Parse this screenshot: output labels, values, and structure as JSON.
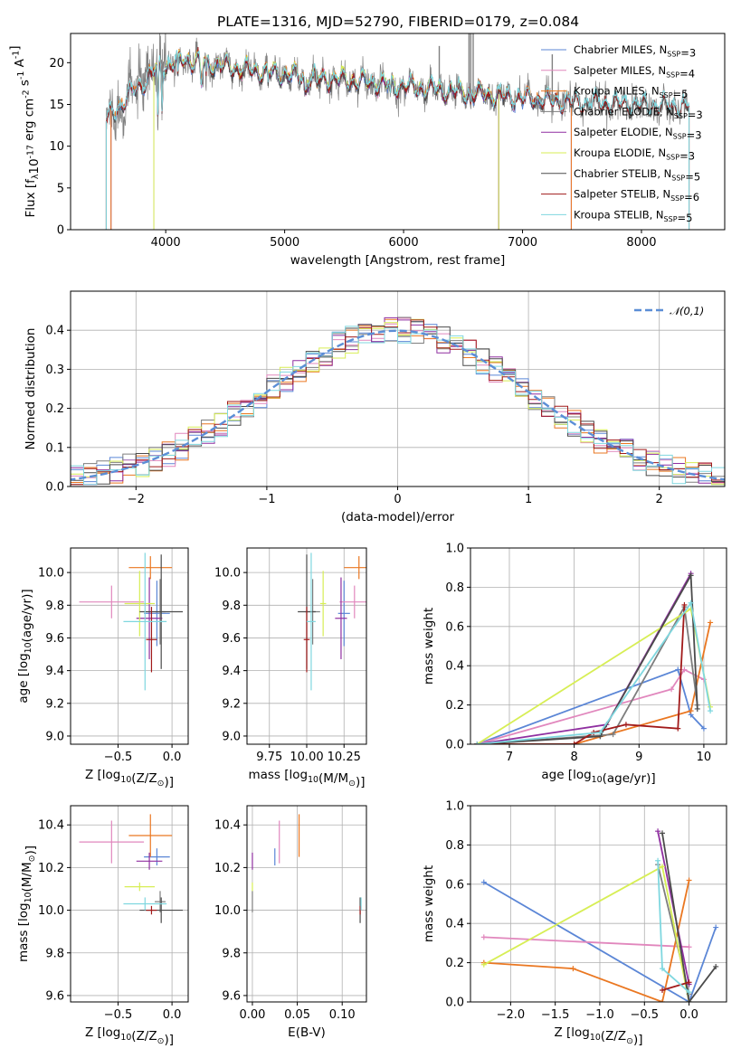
{
  "figure": {
    "title": "PLATE=1316, MJD=52790, FIBERID=0179, z=0.084"
  },
  "colors": {
    "Chabrier MILES": "#5b86d6",
    "Salpeter MILES": "#e187bd",
    "Kroupa MILES": "#ea7721",
    "Chabrier ELODIE": "#7e7e7e",
    "Salpeter ELODIE": "#8f2fa0",
    "Kroupa ELODIE": "#d7ee55",
    "Chabrier STELIB": "#4b4b4b",
    "Salpeter STELIB": "#a11a1a",
    "Kroupa STELIB": "#7fd7df",
    "data": "#808080",
    "normal": "#5b8ed6"
  },
  "chart_data": [
    {
      "id": "spectrum",
      "type": "line",
      "title": "PLATE=1316, MJD=52790, FIBERID=0179, z=0.084",
      "xlabel": "wavelength [Angstrom, rest frame]",
      "ylabel": "Flux [f$_\\lambda$10$^{-17}$ erg cm$^{-2}$ s$^{-1}$ A$^{-1}$]",
      "xlim": [
        3200,
        8700
      ],
      "ylim": [
        0,
        23.5
      ],
      "xticks": [
        4000,
        5000,
        6000,
        7000,
        8000
      ],
      "yticks": [
        0,
        5,
        10,
        15,
        20
      ],
      "grid": false,
      "legend_position": "top-right",
      "continuum": {
        "x": [
          3500,
          3600,
          3700,
          3800,
          3900,
          4000,
          4100,
          4200,
          4300,
          4400,
          4600,
          4800,
          5000,
          5200,
          5400,
          5600,
          5800,
          6000,
          6200,
          6400,
          6600,
          6800,
          7000,
          7200,
          7400,
          7600,
          7800,
          8000,
          8200,
          8400,
          8700
        ],
        "y": [
          13.2,
          14.5,
          16.3,
          17.5,
          19.0,
          19.6,
          20.2,
          20.3,
          20.0,
          19.8,
          19.3,
          18.9,
          18.6,
          18.3,
          18.0,
          17.8,
          17.5,
          17.2,
          16.9,
          16.6,
          16.3,
          16.0,
          15.8,
          15.5,
          15.3,
          15.2,
          15.1,
          15.0,
          14.9,
          14.8,
          14.7
        ]
      },
      "series": [
        {
          "name": "Chabrier MILES, N$_{SSP}$=3"
        },
        {
          "name": "Salpeter MILES, N$_{SSP}$=4"
        },
        {
          "name": "Kroupa MILES, N$_{SSP}$=5"
        },
        {
          "name": "Chabrier ELODIE, N$_{SSP}$=3"
        },
        {
          "name": "Salpeter ELODIE, N$_{SSP}$=3"
        },
        {
          "name": "Kroupa ELODIE, N$_{SSP}$=3"
        },
        {
          "name": "Chabrier STELIB, N$_{SSP}$=5"
        },
        {
          "name": "Salpeter STELIB, N$_{SSP}$=6"
        },
        {
          "name": "Kroupa STELIB, N$_{SSP}$=5"
        }
      ]
    },
    {
      "id": "residuals",
      "type": "line",
      "xlabel": "(data-model)/error",
      "ylabel": "Normed distribution",
      "xlim": [
        -2.5,
        2.5
      ],
      "ylim": [
        0,
        0.5
      ],
      "xticks": [
        -2,
        -1,
        0,
        1,
        2
      ],
      "yticks": [
        0.0,
        0.1,
        0.2,
        0.3,
        0.4
      ],
      "grid": true,
      "legend_position": "top-right",
      "normal_label": "$\\mathcal{N}(0,1)$"
    },
    {
      "id": "age-vs-Z",
      "type": "scatter",
      "xlabel": "Z [log$_{10}$(Z/Z$_\\odot$)]",
      "ylabel": "age  [log$_{10}$(age/yr)]",
      "xlim": [
        -0.94,
        0.15
      ],
      "ylim": [
        8.95,
        10.15
      ],
      "xticks": [
        -0.5,
        0.0
      ],
      "yticks": [
        9.0,
        9.2,
        9.4,
        9.6,
        9.8,
        10.0
      ],
      "grid": true
    },
    {
      "id": "age-vs-mass",
      "type": "scatter",
      "xlabel": "mass [log$_{10}$(M/M$_\\odot$)]",
      "ylabel": "",
      "xlim": [
        9.6,
        10.4
      ],
      "ylim": [
        8.95,
        10.15
      ],
      "xticks": [
        9.75,
        10.0,
        10.25
      ],
      "yticks": [
        9.0,
        9.2,
        9.4,
        9.6,
        9.8,
        10.0
      ],
      "grid": true
    },
    {
      "id": "weight-vs-age",
      "type": "line",
      "xlabel": "age  [log$_{10}$(age/yr)]",
      "ylabel": "mass weight",
      "xlim": [
        6.4,
        10.35
      ],
      "ylim": [
        0,
        1.0
      ],
      "xticks": [
        7,
        8,
        9,
        10
      ],
      "yticks": [
        0.0,
        0.2,
        0.4,
        0.6,
        0.8,
        1.0
      ],
      "grid": true
    },
    {
      "id": "mass-vs-Z",
      "type": "scatter",
      "xlabel": "Z [log$_{10}$(Z/Z$_\\odot$)]",
      "ylabel": "mass [log$_{10}$(M/M$_\\odot$)]",
      "xlim": [
        -0.94,
        0.15
      ],
      "ylim": [
        9.57,
        10.49
      ],
      "xticks": [
        -0.5,
        0.0
      ],
      "yticks": [
        9.6,
        9.8,
        10.0,
        10.2,
        10.4
      ],
      "grid": true
    },
    {
      "id": "mass-vs-ebv",
      "type": "scatter",
      "xlabel": "E(B-V)",
      "ylabel": "",
      "xlim": [
        -0.006,
        0.127
      ],
      "ylim": [
        9.57,
        10.49
      ],
      "xticks": [
        0.0,
        0.05,
        0.1
      ],
      "yticks": [
        9.6,
        9.8,
        10.0,
        10.2,
        10.4
      ],
      "grid": true
    },
    {
      "id": "weight-vs-Z",
      "type": "line",
      "xlabel": "Z [log$_{10}$(Z/Z$_\\odot$)]",
      "ylabel": "mass weight",
      "xlim": [
        -2.45,
        0.42
      ],
      "ylim": [
        0,
        1.0
      ],
      "xticks": [
        -2.0,
        -1.5,
        -1.0,
        -0.5,
        0.0
      ],
      "yticks": [
        0.0,
        0.2,
        0.4,
        0.6,
        0.8,
        1.0
      ],
      "grid": true
    }
  ],
  "models": [
    {
      "name": "Chabrier MILES",
      "Z": -0.14,
      "Z_err": 0.12,
      "age": 9.75,
      "age_err": 0.2,
      "mass": 10.25,
      "mass_err": 0.04,
      "ebv": 0.025,
      "ebv_err": 0.0,
      "sfh_age": [
        6.5,
        9.6,
        9.8,
        10.0
      ],
      "sfh_w": [
        0.0,
        0.38,
        0.15,
        0.08
      ],
      "sfh_Z": [
        -2.3,
        0.0,
        0.3
      ],
      "sfh_wz": [
        0.61,
        0.0,
        0.38
      ]
    },
    {
      "name": "Salpeter MILES",
      "Z": -0.56,
      "Z_err": 0.3,
      "age": 9.82,
      "age_err": 0.1,
      "mass": 10.32,
      "mass_err": 0.1,
      "ebv": 0.03,
      "ebv_err": 0.0,
      "sfh_age": [
        6.5,
        9.5,
        9.7,
        10.0
      ],
      "sfh_w": [
        0.0,
        0.28,
        0.38,
        0.33
      ],
      "sfh_Z": [
        -2.3,
        0.0
      ],
      "sfh_wz": [
        0.33,
        0.28
      ]
    },
    {
      "name": "Kroupa MILES",
      "Z": -0.2,
      "Z_err": 0.2,
      "age": 10.03,
      "age_err": 0.07,
      "mass": 10.35,
      "mass_err": 0.1,
      "ebv": 0.052,
      "ebv_err": 0.0,
      "sfh_age": [
        6.5,
        8.0,
        9.8,
        10.1
      ],
      "sfh_w": [
        0.0,
        0.0,
        0.17,
        0.62
      ],
      "sfh_Z": [
        -2.3,
        -1.3,
        -0.3,
        0.0
      ],
      "sfh_wz": [
        0.2,
        0.17,
        0.0,
        0.62
      ]
    },
    {
      "name": "Chabrier ELODIE",
      "Z": -0.11,
      "Z_err": 0.05,
      "age": 9.76,
      "age_err": 0.2,
      "mass": 10.04,
      "mass_err": 0.05,
      "ebv": 0.0,
      "ebv_err": 0.0,
      "sfh_age": [
        6.5,
        8.6,
        9.7,
        9.9
      ],
      "sfh_w": [
        0.0,
        0.05,
        0.7,
        0.2
      ],
      "sfh_Z": [
        -0.35,
        0.0
      ],
      "sfh_wz": [
        0.7,
        0.04
      ]
    },
    {
      "name": "Salpeter ELODIE",
      "Z": -0.21,
      "Z_err": 0.12,
      "age": 9.72,
      "age_err": 0.25,
      "mass": 10.23,
      "mass_err": 0.04,
      "ebv": 0.0,
      "ebv_err": 0.0,
      "sfh_age": [
        6.5,
        8.5,
        9.8
      ],
      "sfh_w": [
        0.0,
        0.1,
        0.87
      ],
      "sfh_Z": [
        -0.35,
        0.0
      ],
      "sfh_wz": [
        0.87,
        0.09
      ]
    },
    {
      "name": "Kroupa ELODIE",
      "Z": -0.3,
      "Z_err": 0.14,
      "age": 9.81,
      "age_err": 0.2,
      "mass": 10.11,
      "mass_err": 0.02,
      "ebv": 0.0,
      "ebv_err": 0.0,
      "sfh_age": [
        6.5,
        9.8,
        10.1
      ],
      "sfh_w": [
        0.0,
        0.69,
        0.19
      ],
      "sfh_Z": [
        -2.3,
        -0.3,
        0.0
      ],
      "sfh_wz": [
        0.19,
        0.69,
        0.0
      ]
    },
    {
      "name": "Chabrier STELIB",
      "Z": -0.1,
      "Z_err": 0.2,
      "age": 9.76,
      "age_err": 0.35,
      "mass": 10.0,
      "mass_err": 0.06,
      "ebv": 0.12,
      "ebv_err": 0.0,
      "sfh_age": [
        6.5,
        8.4,
        9.8,
        9.9
      ],
      "sfh_w": [
        0.0,
        0.04,
        0.86,
        0.18
      ],
      "sfh_Z": [
        -0.3,
        0.0,
        0.3
      ],
      "sfh_wz": [
        0.86,
        0.0,
        0.18
      ]
    },
    {
      "name": "Salpeter STELIB",
      "Z": -0.19,
      "Z_err": 0.05,
      "age": 9.59,
      "age_err": 0.2,
      "mass": 10.0,
      "mass_err": 0.02,
      "ebv": 0.12,
      "ebv_err": 0.0,
      "sfh_age": [
        6.5,
        8.0,
        8.3,
        8.8,
        9.6,
        9.7
      ],
      "sfh_w": [
        0.0,
        0.0,
        0.06,
        0.1,
        0.08,
        0.71
      ],
      "sfh_Z": [
        -0.3,
        0.0
      ],
      "sfh_wz": [
        0.06,
        0.1
      ]
    },
    {
      "name": "Kroupa STELIB",
      "Z": -0.25,
      "Z_err": 0.2,
      "age": 9.7,
      "age_err": 0.42,
      "mass": 10.03,
      "mass_err": 0.03,
      "ebv": 0.121,
      "ebv_err": 0.0,
      "sfh_age": [
        6.5,
        8.4,
        9.8,
        10.1
      ],
      "sfh_w": [
        0.0,
        0.06,
        0.72,
        0.17
      ],
      "sfh_Z": [
        -0.35,
        -0.3,
        0.0
      ],
      "sfh_wz": [
        0.72,
        0.17,
        0.05
      ]
    }
  ]
}
